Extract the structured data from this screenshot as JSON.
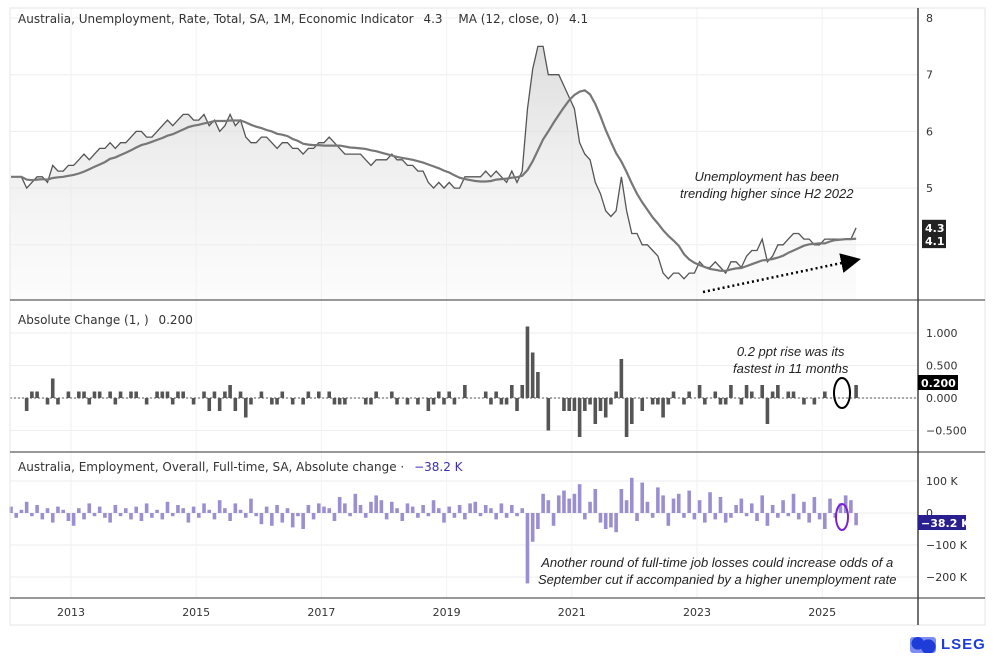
{
  "legends": {
    "pane1_title": "Australia, Unemployment, Rate, Total, SA, 1M, Economic Indicator",
    "pane1_value": "4.3",
    "pane1_ma_title": "MA (12, close, 0)",
    "pane1_ma_value": "4.1",
    "pane2_title": "Absolute Change (1, )",
    "pane2_value": "0.200",
    "pane3_title": "Australia, Employment, Overall, Full-time, SA, Absolute change ·",
    "pane3_value": "−38.2 K"
  },
  "annotations": {
    "note1_line1": "Unemployment has been",
    "note1_line2": "trending higher since H2 2022",
    "note2_line1": "0.2 ppt rise was its",
    "note2_line2": "fastest in 11 months",
    "note3_line1": "Another round of full-time job losses could increase odds of a",
    "note3_line2": "September cut if accompanied by a higher unemployment rate"
  },
  "logo": "LSEG",
  "colors": {
    "rate_line": "#555555",
    "ma_line": "#777777",
    "change_bars": "#555555",
    "employment_bars": "#9b8fd0",
    "employment_badge": "#2a1f8f",
    "ellipse_black": "#000000",
    "ellipse_purple": "#7a1fd6"
  },
  "chart_data": [
    {
      "type": "line",
      "start": "2012-01",
      "frequency": "monthly",
      "series": [
        {
          "name": "Australia, Unemployment, Rate, Total, SA, 1M, Economic Indicator",
          "values": [
            5.2,
            5.2,
            5.2,
            5.0,
            5.1,
            5.2,
            5.2,
            5.1,
            5.4,
            5.3,
            5.3,
            5.4,
            5.4,
            5.5,
            5.6,
            5.5,
            5.6,
            5.7,
            5.7,
            5.8,
            5.7,
            5.8,
            5.8,
            5.9,
            6.0,
            6.0,
            5.9,
            5.9,
            6.0,
            6.1,
            6.2,
            6.1,
            6.2,
            6.3,
            6.3,
            6.2,
            6.2,
            6.3,
            6.1,
            6.2,
            6.0,
            6.1,
            6.3,
            6.1,
            6.2,
            5.9,
            5.8,
            5.8,
            5.9,
            5.9,
            5.8,
            5.7,
            5.8,
            5.8,
            5.7,
            5.7,
            5.6,
            5.7,
            5.7,
            5.8,
            5.8,
            5.9,
            5.8,
            5.7,
            5.6,
            5.6,
            5.6,
            5.6,
            5.5,
            5.4,
            5.5,
            5.5,
            5.5,
            5.6,
            5.5,
            5.5,
            5.4,
            5.4,
            5.3,
            5.3,
            5.1,
            5.0,
            5.1,
            5.0,
            5.1,
            5.0,
            5.0,
            5.2,
            5.2,
            5.2,
            5.2,
            5.3,
            5.2,
            5.3,
            5.2,
            5.1,
            5.3,
            5.1,
            5.3,
            6.4,
            7.1,
            7.5,
            7.5,
            7.0,
            7.0,
            7.0,
            6.8,
            6.6,
            6.4,
            5.8,
            5.6,
            5.5,
            5.1,
            4.9,
            4.6,
            4.5,
            4.6,
            5.2,
            4.6,
            4.2,
            4.2,
            4.0,
            4.0,
            3.9,
            3.8,
            3.5,
            3.4,
            3.5,
            3.5,
            3.4,
            3.5,
            3.5,
            3.7,
            3.6,
            3.6,
            3.7,
            3.6,
            3.5,
            3.7,
            3.7,
            3.6,
            3.8,
            3.9,
            3.9,
            4.1,
            3.7,
            3.8,
            4.0,
            4.0,
            4.1,
            4.2,
            4.2,
            4.1,
            4.1,
            4.0,
            4.0,
            4.1,
            4.1,
            4.1,
            4.1,
            4.1,
            4.1,
            4.3
          ]
        },
        {
          "name": "MA (12, close, 0)",
          "derived": "12-month moving average"
        }
      ],
      "ylim": [
        3,
        8
      ],
      "yticks": [
        "8",
        "7",
        "6",
        "5"
      ],
      "last_value_labels": [
        "4.3",
        "4.1"
      ],
      "fill": "area under rate line",
      "grid": true
    },
    {
      "type": "bar",
      "name": "Absolute Change (1, )",
      "derived": "monthly change of unemployment rate",
      "ylim": [
        -0.75,
        1.1
      ],
      "yticks": [
        "1.000",
        "0.500",
        "0.000",
        "−0.500"
      ],
      "last_value_label": "0.200"
    },
    {
      "type": "bar",
      "name": "Australia, Employment, Overall, Full-time, SA, Absolute change",
      "start": "2012-01",
      "frequency": "monthly",
      "unit": "K",
      "values": [
        20,
        -15,
        10,
        35,
        -10,
        25,
        -20,
        15,
        -30,
        20,
        10,
        -25,
        -40,
        15,
        -20,
        30,
        -10,
        20,
        -15,
        -30,
        25,
        -10,
        15,
        -20,
        20,
        -25,
        30,
        -15,
        10,
        -20,
        35,
        -10,
        25,
        15,
        -30,
        20,
        -15,
        30,
        10,
        -20,
        40,
        15,
        -25,
        30,
        10,
        -15,
        45,
        -10,
        -35,
        20,
        -40,
        25,
        -30,
        15,
        -45,
        -10,
        -50,
        25,
        -20,
        30,
        20,
        15,
        -25,
        50,
        30,
        -10,
        60,
        25,
        -15,
        35,
        55,
        40,
        -20,
        35,
        15,
        -25,
        30,
        20,
        -15,
        25,
        -10,
        40,
        15,
        -30,
        20,
        -15,
        25,
        -20,
        30,
        35,
        -10,
        25,
        15,
        -20,
        30,
        -15,
        25,
        -10,
        15,
        -220,
        -90,
        -50,
        60,
        40,
        -40,
        55,
        70,
        45,
        60,
        90,
        -20,
        35,
        75,
        -30,
        -50,
        -45,
        -60,
        75,
        40,
        110,
        -25,
        95,
        35,
        -15,
        80,
        55,
        -40,
        45,
        60,
        -15,
        70,
        -20,
        40,
        -30,
        65,
        -20,
        50,
        -30,
        -15,
        25,
        45,
        -10,
        30,
        -25,
        55,
        -40,
        25,
        -15,
        40,
        -10,
        60,
        -20,
        35,
        -30,
        50,
        -20,
        -50,
        45,
        -15,
        30,
        55,
        40,
        -38.2
      ],
      "ylim": [
        -260,
        140
      ],
      "yticks": [
        "100 K",
        "0",
        "−100 K",
        "−200 K"
      ],
      "last_value_label": "−38.2 K"
    }
  ],
  "xaxis": {
    "ticks": [
      "2013",
      "2015",
      "2017",
      "2019",
      "2021",
      "2023",
      "2025"
    ]
  }
}
